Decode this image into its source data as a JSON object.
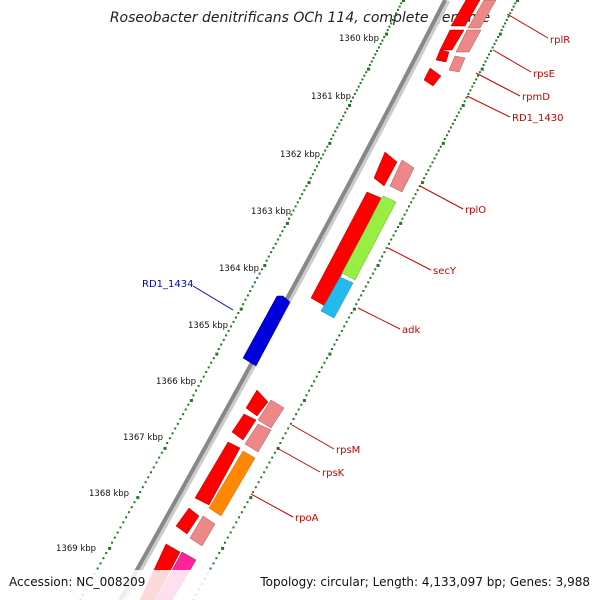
{
  "title": "Roseobacter denitrificans OCh 114, complete genome",
  "accession": "Accession: NC_008209",
  "summary": "Topology: circular; Length: 4,133,097 bp; Genes: 3,988",
  "kbp_labels": [
    {
      "text": "1360 kbp",
      "kbp": 1360
    },
    {
      "text": "1361 kbp",
      "kbp": 1361
    },
    {
      "text": "1362 kbp",
      "kbp": 1362
    },
    {
      "text": "1363 kbp",
      "kbp": 1363
    },
    {
      "text": "1364 kbp",
      "kbp": 1364
    },
    {
      "text": "1365 kbp",
      "kbp": 1365
    },
    {
      "text": "1366 kbp",
      "kbp": 1366
    },
    {
      "text": "1367 kbp",
      "kbp": 1367
    },
    {
      "text": "1368 kbp",
      "kbp": 1368
    },
    {
      "text": "1369 kbp",
      "kbp": 1369
    }
  ],
  "gene_labels": [
    {
      "name": "rplR",
      "color": "#cc0000"
    },
    {
      "name": "rpsE",
      "color": "#cc0000"
    },
    {
      "name": "rpmD",
      "color": "#cc0000"
    },
    {
      "name": "RD1_1430",
      "color": "#cc0000"
    },
    {
      "name": "rplO",
      "color": "#cc0000"
    },
    {
      "name": "secY",
      "color": "#cc0000"
    },
    {
      "name": "adk",
      "color": "#cc0000"
    },
    {
      "name": "RD1_1434",
      "color": "#0000cc"
    },
    {
      "name": "rpsM",
      "color": "#cc0000"
    },
    {
      "name": "rpsK",
      "color": "#cc0000"
    },
    {
      "name": "rpoA",
      "color": "#cc0000"
    }
  ],
  "colors": {
    "cds_red": "#ff0000",
    "cds_pink": "#ee8888",
    "secY_green": "#99ee44",
    "adk_cyan": "#22bbee",
    "rpoA_orange": "#ff8800",
    "magenta": "#ff2299",
    "reverse_blue": "#0000dd",
    "tick_green": "#227722",
    "backbone": "#888888"
  }
}
